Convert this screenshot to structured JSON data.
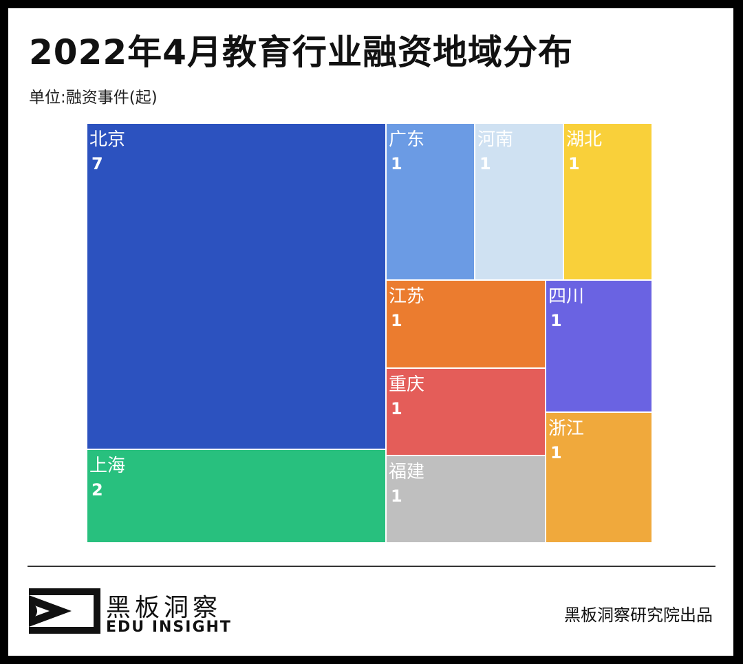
{
  "header": {
    "title": "2022年4月教育行业融资地域分布",
    "subtitle": "单位:融资事件(起)"
  },
  "chart_data": {
    "type": "treemap",
    "title": "2022年4月教育行业融资地域分布",
    "unit": "单位:融资事件(起)",
    "items": [
      {
        "name": "北京",
        "value": 7,
        "color": "#2c52bf"
      },
      {
        "name": "上海",
        "value": 2,
        "color": "#28c07e"
      },
      {
        "name": "广东",
        "value": 1,
        "color": "#6b9be4"
      },
      {
        "name": "河南",
        "value": 1,
        "color": "#cfe1f2"
      },
      {
        "name": "湖北",
        "value": 1,
        "color": "#f9d03a"
      },
      {
        "name": "江苏",
        "value": 1,
        "color": "#eb7c2f"
      },
      {
        "name": "四川",
        "value": 1,
        "color": "#6a63e2"
      },
      {
        "name": "重庆",
        "value": 1,
        "color": "#e45d59"
      },
      {
        "name": "浙江",
        "value": 1,
        "color": "#f0a93c"
      },
      {
        "name": "福建",
        "value": 1,
        "color": "#bfbfbf"
      }
    ]
  },
  "footer": {
    "brand_cn": "黑板洞察",
    "brand_en": "EDU INSIGHT",
    "credit": "黑板洞察研究院出品"
  }
}
